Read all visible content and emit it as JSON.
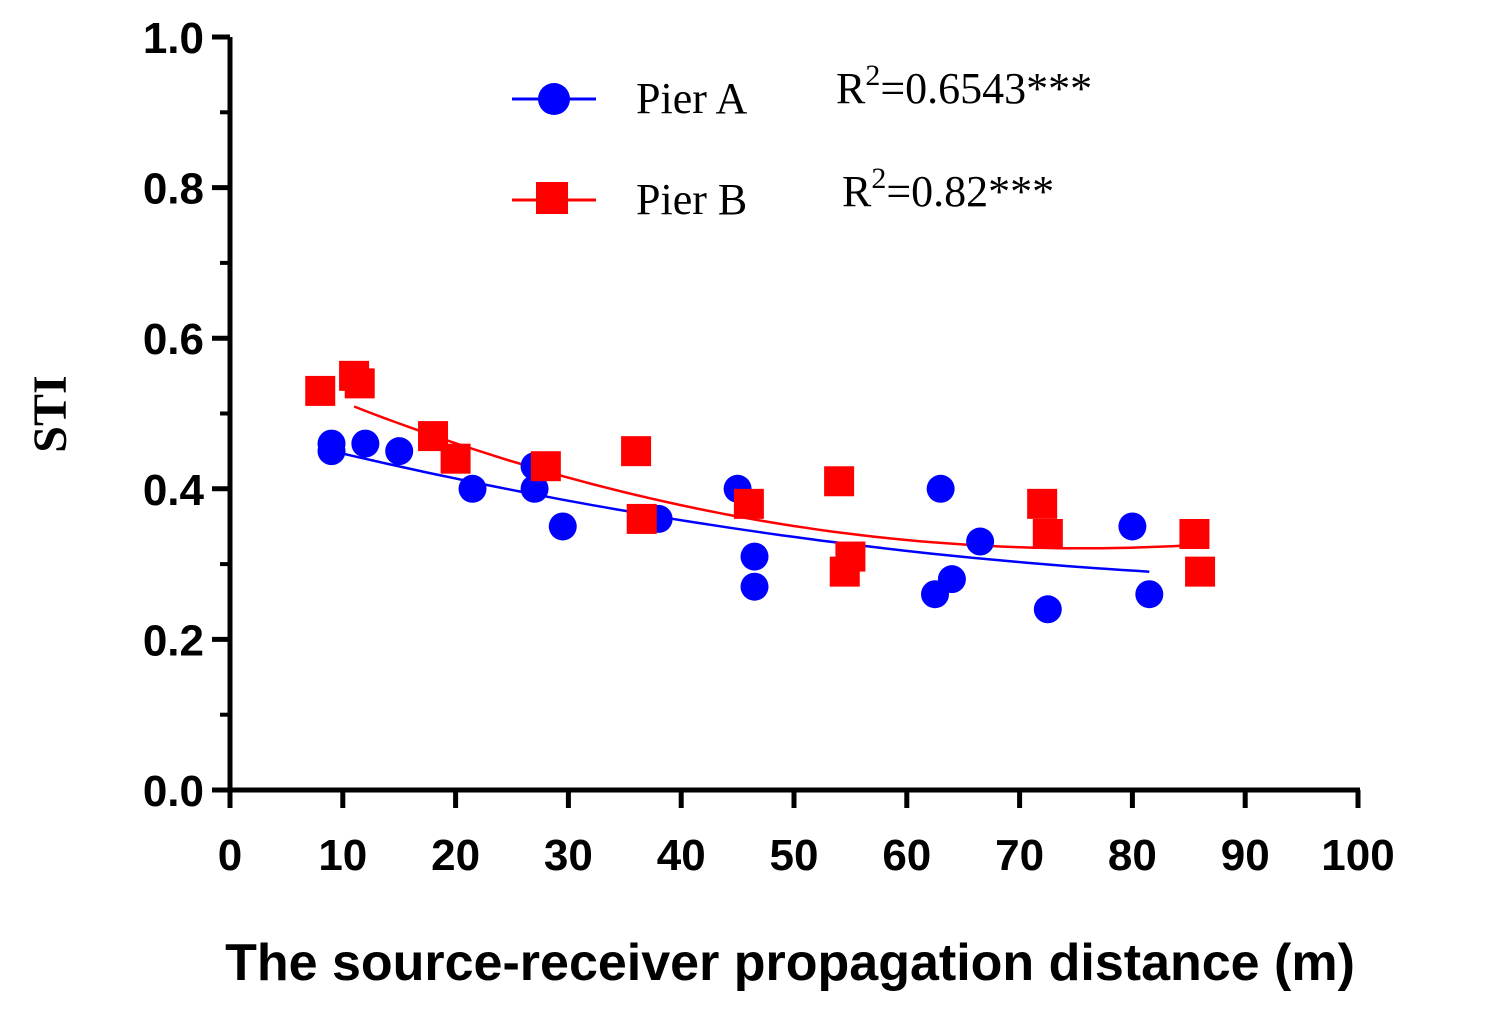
{
  "chart_data": {
    "type": "scatter",
    "title": "",
    "xlabel": "The source-receiver propagation distance (m)",
    "ylabel": "STI",
    "xlim": [
      0,
      100
    ],
    "ylim": [
      0,
      1.0
    ],
    "x_ticks": [
      "0",
      "10",
      "20",
      "30",
      "40",
      "50",
      "60",
      "70",
      "80",
      "90",
      "100"
    ],
    "y_ticks": [
      "0.0",
      "0.2",
      "0.4",
      "0.6",
      "0.8",
      "1.0"
    ],
    "legend_position": "top",
    "series": [
      {
        "name": "Pier A",
        "r2_base": "R",
        "r2_sup": "2",
        "r2_value": "=0.6543***",
        "color": "#0000ff",
        "marker": "circle",
        "points": [
          [
            9,
            0.46
          ],
          [
            9,
            0.45
          ],
          [
            12,
            0.46
          ],
          [
            15,
            0.45
          ],
          [
            21.5,
            0.4
          ],
          [
            27,
            0.43
          ],
          [
            27,
            0.4
          ],
          [
            29.5,
            0.35
          ],
          [
            38,
            0.36
          ],
          [
            45,
            0.4
          ],
          [
            46.5,
            0.31
          ],
          [
            46.5,
            0.27
          ],
          [
            62.5,
            0.26
          ],
          [
            63,
            0.4
          ],
          [
            64,
            0.28
          ],
          [
            66.5,
            0.33
          ],
          [
            72.5,
            0.24
          ],
          [
            80,
            0.35
          ],
          [
            81.5,
            0.26
          ]
        ],
        "fit": {
          "x_range": [
            9,
            81.5
          ],
          "coeffs": [
            0.4835,
            -0.003858,
            1.82e-05
          ]
        }
      },
      {
        "name": "Pier B",
        "r2_base": "R",
        "r2_sup": "2",
        "r2_value": "=0.82***",
        "color": "#ff0000",
        "marker": "square",
        "points": [
          [
            8,
            0.53
          ],
          [
            11,
            0.55
          ],
          [
            11.5,
            0.54
          ],
          [
            18,
            0.47
          ],
          [
            20,
            0.44
          ],
          [
            28,
            0.43
          ],
          [
            36,
            0.45
          ],
          [
            36.5,
            0.36
          ],
          [
            46,
            0.38
          ],
          [
            54,
            0.41
          ],
          [
            54.5,
            0.29
          ],
          [
            55,
            0.31
          ],
          [
            72,
            0.38
          ],
          [
            72.5,
            0.34
          ],
          [
            85.5,
            0.34
          ],
          [
            86,
            0.29
          ]
        ],
        "fit": {
          "x_range": [
            11,
            86
          ],
          "coeffs": [
            0.5788,
            -0.00682,
            4.51e-05
          ]
        }
      }
    ]
  }
}
